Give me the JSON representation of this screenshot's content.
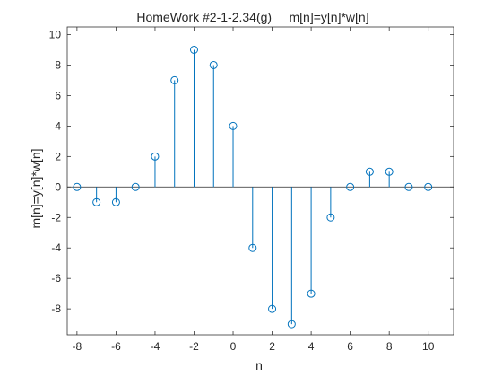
{
  "chart_data": {
    "type": "stem",
    "title": "HomeWork #2-1-2.34(g)     m[n]=y[n]*w[n]",
    "xlabel": "n",
    "ylabel": "m[n]=y[n]*w[n]",
    "xlim": [
      -8.5,
      11.3
    ],
    "ylim": [
      -9.7,
      10.5
    ],
    "xticks": [
      -8,
      -6,
      -4,
      -2,
      0,
      2,
      4,
      6,
      8,
      10
    ],
    "yticks": [
      -8,
      -6,
      -4,
      -2,
      0,
      2,
      4,
      6,
      8,
      10
    ],
    "grid": false,
    "series": [
      {
        "color": "#0072bd",
        "x": [
          -8,
          -7,
          -6,
          -5,
          -4,
          -3,
          -2,
          -1,
          0,
          1,
          2,
          3,
          4,
          5,
          6,
          7,
          8,
          9,
          10
        ],
        "values": [
          0,
          -1,
          -1,
          0,
          2,
          7,
          9,
          8,
          4,
          -4,
          -8,
          -9,
          -7,
          -2,
          0,
          1,
          1,
          0,
          0
        ]
      }
    ]
  }
}
